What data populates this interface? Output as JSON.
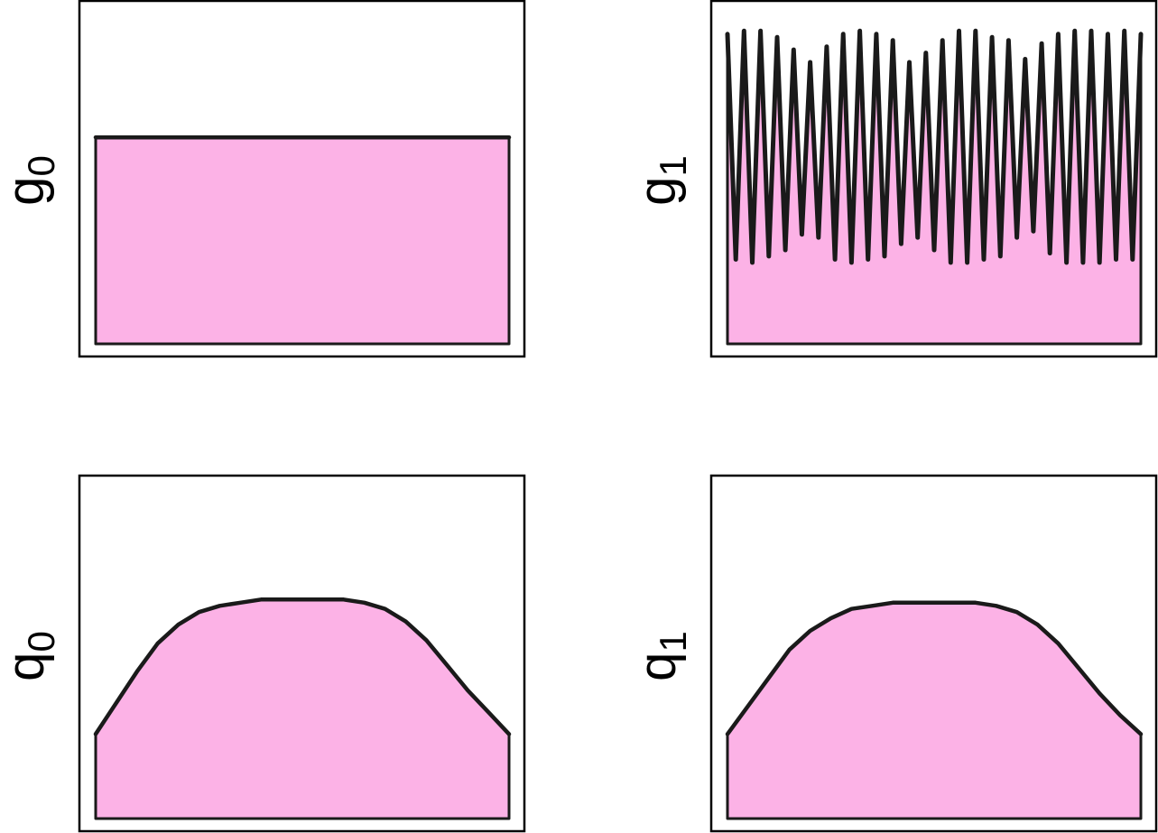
{
  "figure": {
    "fill_color": "#fcb2e6",
    "line_color": "#1a1a1a"
  },
  "chart_data": [
    {
      "type": "area",
      "ylabel_main": "g",
      "ylabel_sub": "0",
      "xlim": [
        0,
        1
      ],
      "ylim": [
        0,
        1.05
      ],
      "x": [
        0,
        1
      ],
      "y": [
        0.66,
        0.66
      ]
    },
    {
      "type": "area",
      "ylabel_main": "g",
      "ylabel_sub": "1",
      "xlim": [
        0,
        1
      ],
      "ylim": [
        0,
        1.05
      ],
      "x": [
        0,
        0.02,
        0.04,
        0.06,
        0.08,
        0.1,
        0.12,
        0.14,
        0.16,
        0.18,
        0.2,
        0.22,
        0.24,
        0.26,
        0.28,
        0.3,
        0.32,
        0.34,
        0.36,
        0.38,
        0.4,
        0.42,
        0.44,
        0.46,
        0.48,
        0.5,
        0.52,
        0.54,
        0.56,
        0.58,
        0.6,
        0.62,
        0.64,
        0.66,
        0.68,
        0.7,
        0.72,
        0.74,
        0.76,
        0.78,
        0.8,
        0.82,
        0.84,
        0.86,
        0.88,
        0.9,
        0.92,
        0.94,
        0.96,
        0.98,
        1.0
      ],
      "y": [
        0.99,
        0.27,
        1.0,
        0.26,
        1.0,
        0.28,
        0.98,
        0.3,
        0.94,
        0.35,
        0.9,
        0.34,
        0.95,
        0.27,
        0.99,
        0.26,
        1.0,
        0.27,
        0.99,
        0.28,
        0.97,
        0.32,
        0.9,
        0.34,
        0.93,
        0.3,
        0.97,
        0.26,
        1.0,
        0.26,
        1.0,
        0.27,
        0.98,
        0.28,
        0.97,
        0.34,
        0.91,
        0.36,
        0.96,
        0.29,
        0.99,
        0.26,
        1.0,
        0.26,
        1.0,
        0.26,
        0.99,
        0.27,
        1.0,
        0.27,
        0.99
      ]
    },
    {
      "type": "area",
      "ylabel_main": "q",
      "ylabel_sub": "0",
      "xlim": [
        0,
        1
      ],
      "ylim": [
        0,
        1.05
      ],
      "x": [
        0,
        0.05,
        0.1,
        0.15,
        0.2,
        0.25,
        0.3,
        0.35,
        0.4,
        0.45,
        0.5,
        0.55,
        0.6,
        0.65,
        0.7,
        0.75,
        0.8,
        0.85,
        0.9,
        0.95,
        1.0
      ],
      "y": [
        0.27,
        0.37,
        0.47,
        0.56,
        0.62,
        0.66,
        0.68,
        0.69,
        0.7,
        0.7,
        0.7,
        0.7,
        0.7,
        0.69,
        0.67,
        0.63,
        0.57,
        0.49,
        0.41,
        0.34,
        0.27
      ]
    },
    {
      "type": "area",
      "ylabel_main": "q",
      "ylabel_sub": "1",
      "xlim": [
        0,
        1
      ],
      "ylim": [
        0,
        1.05
      ],
      "x": [
        0,
        0.05,
        0.1,
        0.15,
        0.2,
        0.25,
        0.3,
        0.35,
        0.4,
        0.45,
        0.5,
        0.55,
        0.6,
        0.65,
        0.7,
        0.75,
        0.8,
        0.85,
        0.9,
        0.95,
        1.0
      ],
      "y": [
        0.27,
        0.36,
        0.45,
        0.54,
        0.6,
        0.64,
        0.67,
        0.68,
        0.69,
        0.69,
        0.69,
        0.69,
        0.69,
        0.68,
        0.66,
        0.62,
        0.56,
        0.48,
        0.4,
        0.33,
        0.27
      ]
    }
  ]
}
